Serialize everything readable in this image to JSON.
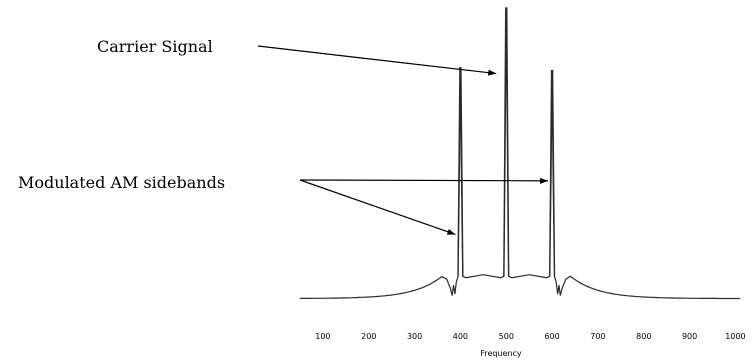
{
  "chart_data": {
    "type": "line",
    "title": "",
    "xlabel": "Frequency",
    "ylabel": "",
    "xlim": [
      50,
      1010
    ],
    "ylim": [
      0,
      100
    ],
    "grid": false,
    "x_ticks": [
      100,
      200,
      300,
      400,
      500,
      600,
      700,
      800,
      900,
      1000
    ],
    "series": [
      {
        "peaks": [
          {
            "x": 400,
            "y": 80
          },
          {
            "x": 500,
            "y": 100
          },
          {
            "x": 600,
            "y": 79
          }
        ],
        "floor_level": 10
      }
    ],
    "annotations": [
      {
        "text": "Carrier Signal",
        "target_x": 500
      },
      {
        "text": "Modulated AM sidebands",
        "target_x": [
          400,
          600
        ]
      }
    ]
  },
  "colors": {
    "line": "#2b2b2b",
    "background": "#ffffff"
  }
}
